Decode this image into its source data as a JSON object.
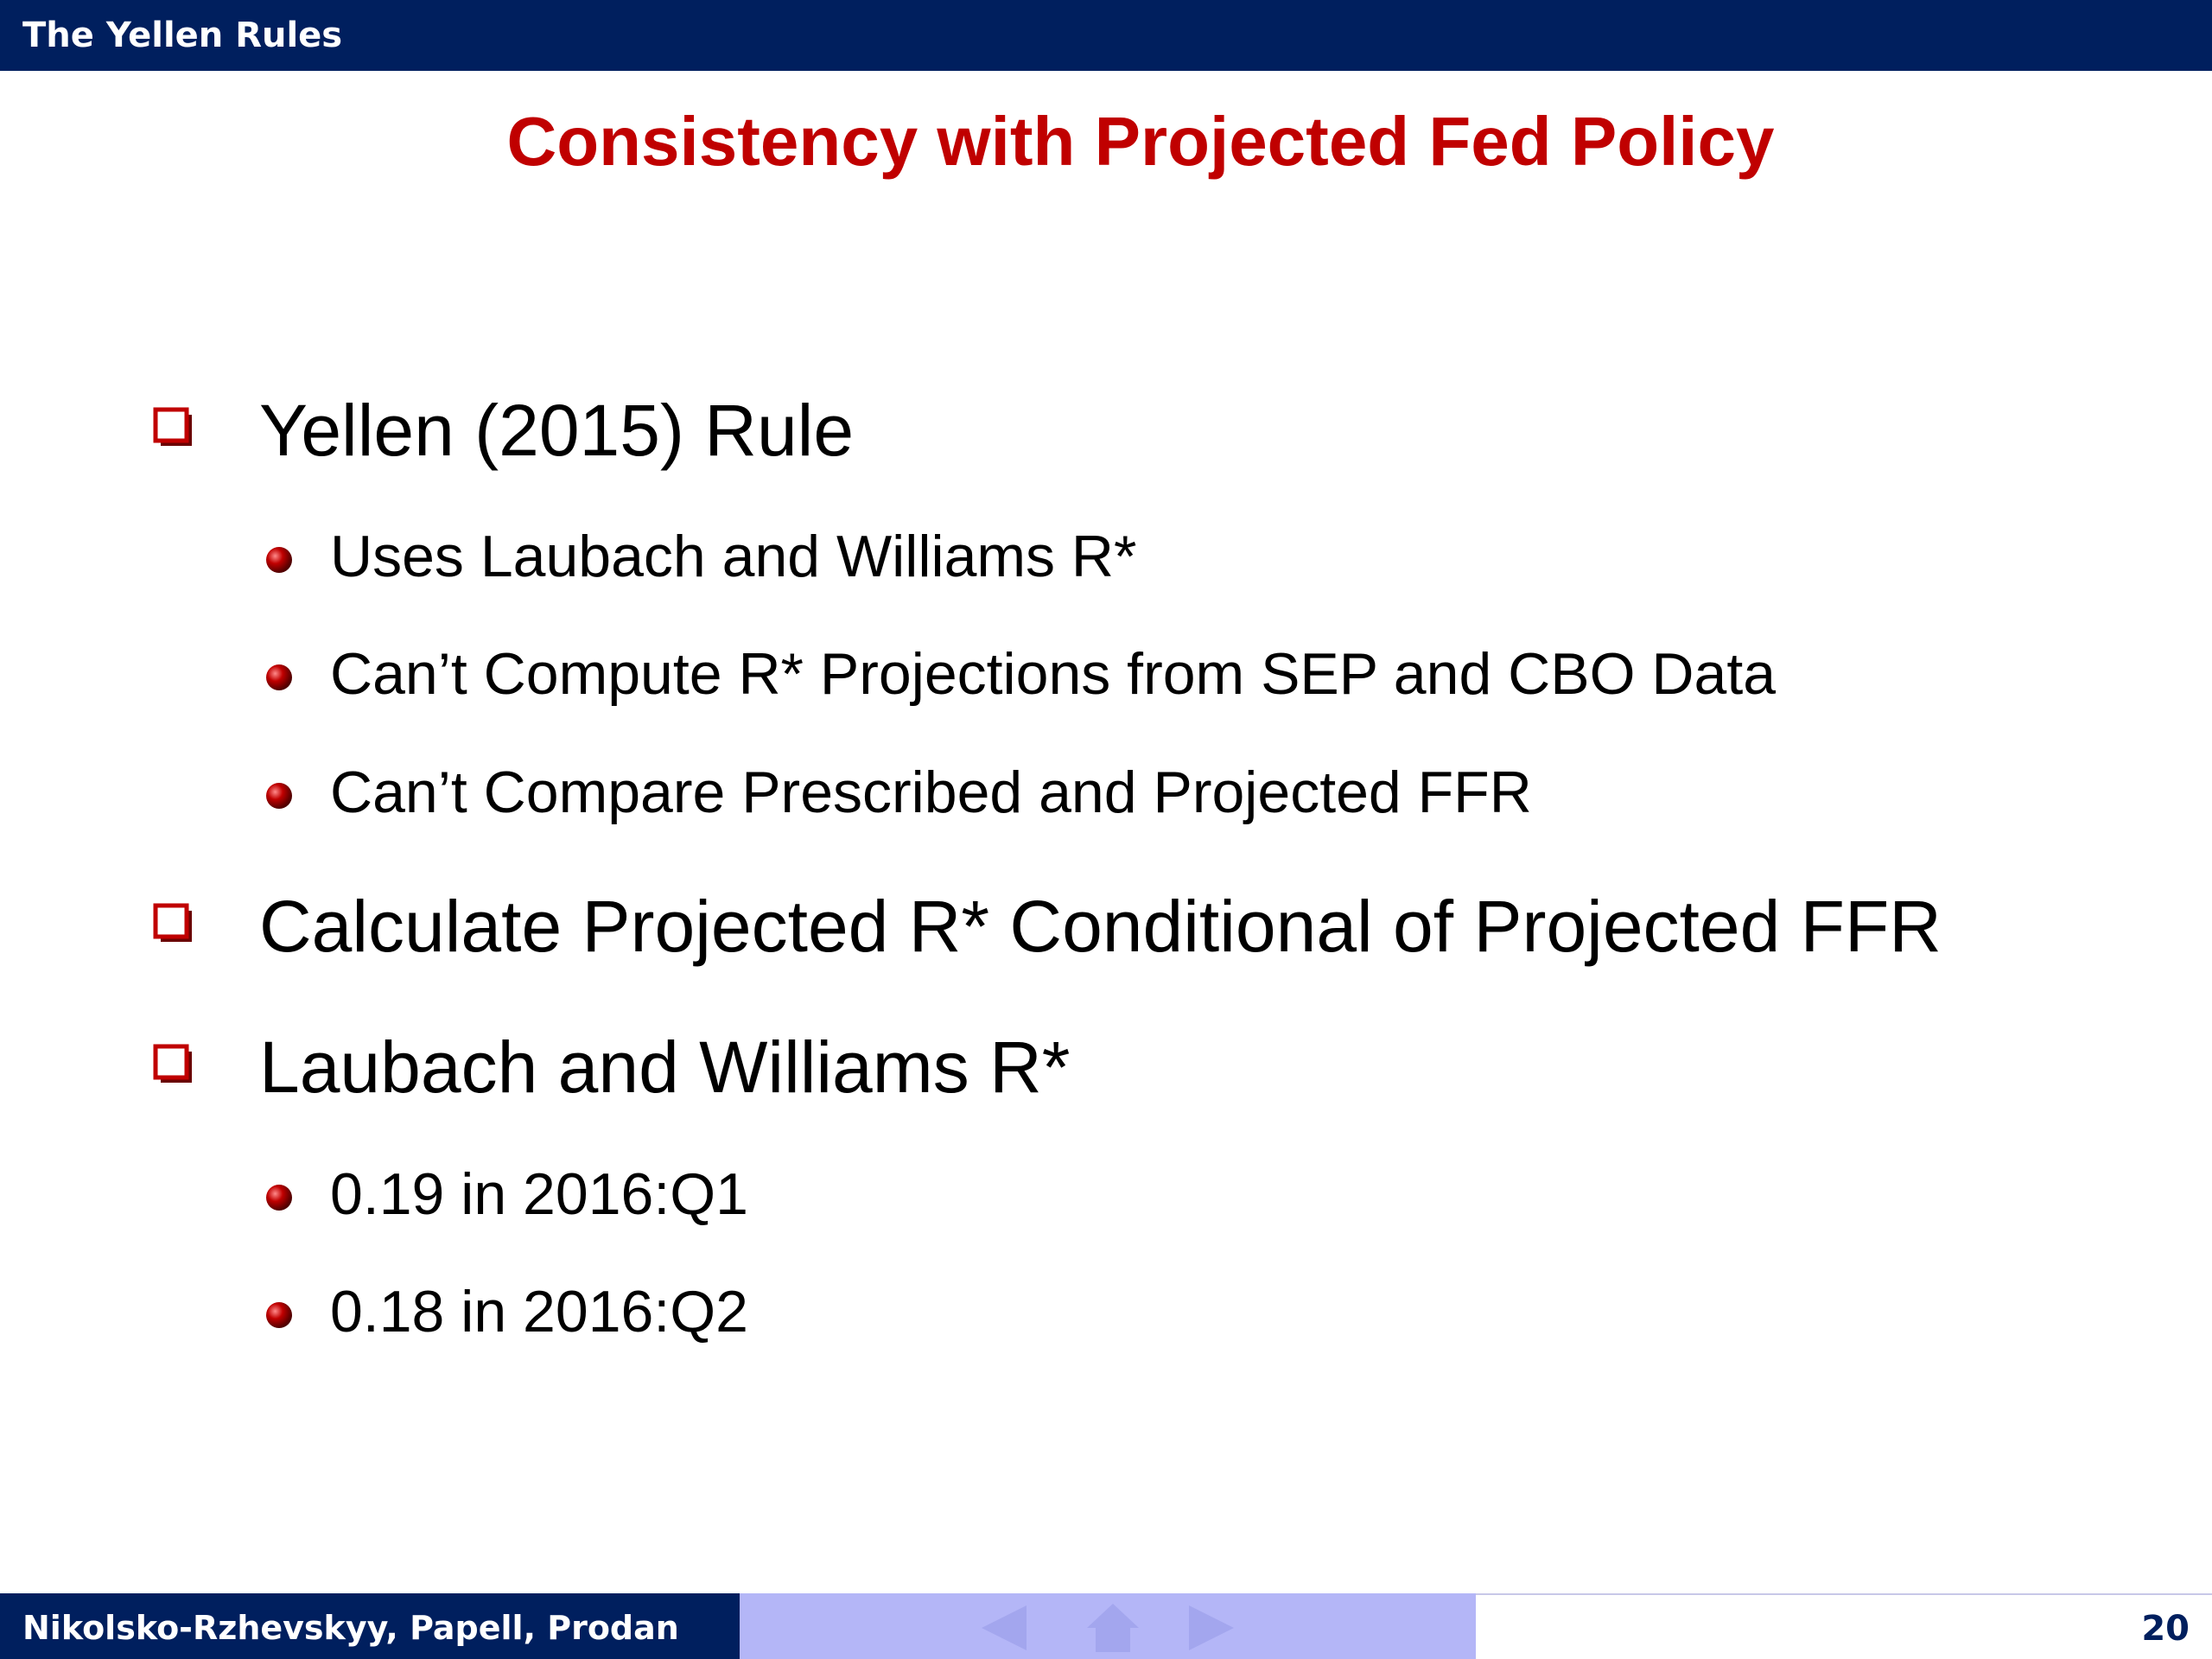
{
  "header": {
    "title": "The Yellen Rules"
  },
  "slide": {
    "title": "Consistency with Projected Fed Policy",
    "bullets": [
      {
        "text": "Yellen (2015) Rule",
        "sub": [
          "Uses Laubach and Williams R*",
          "Can’t Compute R* Projections from SEP and CBO Data",
          "Can’t Compare Prescribed and Projected FFR"
        ]
      },
      {
        "text": "Calculate Projected R* Conditional of Projected FFR",
        "sub": []
      },
      {
        "text": "Laubach and Williams R*",
        "sub": [
          "0.19 in 2016:Q1",
          "0.18 in 2016:Q2"
        ]
      }
    ]
  },
  "footer": {
    "authors": "Nikolsko-Rzhevskyy, Papell, Prodan",
    "page_number": "20"
  },
  "nav": {
    "icons": [
      "prev-arrow-icon",
      "home-icon",
      "next-arrow-icon"
    ],
    "color": "#a3a6ee"
  },
  "colors": {
    "header_bg": "#001f5e",
    "title": "#c00000",
    "bullet": "#c00000",
    "nav_bar": "#b4b6f7"
  }
}
